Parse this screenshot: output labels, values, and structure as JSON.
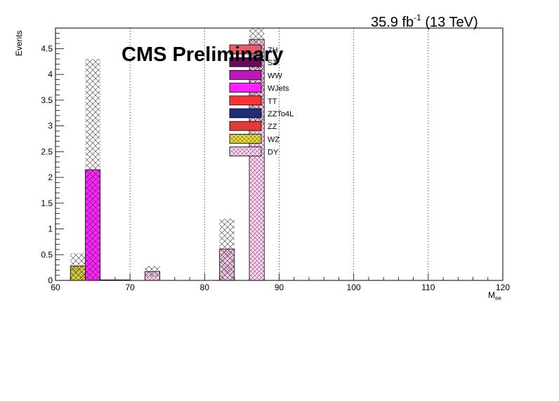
{
  "header": {
    "lumi_value": "35.9 fb",
    "lumi_exp": "-1",
    "lumi_energy": " (13 TeV)",
    "cms_label": "CMS Preliminary"
  },
  "axes": {
    "ylabel": "Events",
    "xlabel_main": "M",
    "xlabel_sub": "ee"
  },
  "chart_data": {
    "type": "bar",
    "stacked": true,
    "xlim": [
      60,
      120
    ],
    "ylim": [
      0,
      4.9
    ],
    "bin_width": 2,
    "x_ticks": [
      60,
      70,
      80,
      90,
      100,
      110,
      120
    ],
    "y_ticks": [
      0,
      0.5,
      1,
      1.5,
      2,
      2.5,
      3,
      3.5,
      4,
      4.5
    ],
    "y_tick_labels": [
      "0",
      "0.5",
      "1",
      "1.5",
      "2",
      "2.5",
      "3",
      "3.5",
      "4",
      "4.5"
    ],
    "grid_x": true,
    "grid_y": false,
    "legend_position": "top-center",
    "series": [
      {
        "name": "ZH",
        "color": "#ef5a6a",
        "pattern": "none",
        "bins": []
      },
      {
        "name": "ST",
        "color": "#6b0a5a",
        "pattern": "none",
        "bins": []
      },
      {
        "name": "WW",
        "color": "#c016c0",
        "pattern": "none",
        "bins": []
      },
      {
        "name": "WJets",
        "color": "#ff22ff",
        "pattern": "none",
        "bins": [
          {
            "lo": 64,
            "hi": 66,
            "value": 2.15
          }
        ]
      },
      {
        "name": "TT",
        "color": "#ff3333",
        "pattern": "none",
        "bins": []
      },
      {
        "name": "ZZTo4L",
        "color": "#1f2d7a",
        "pattern": "none",
        "bins": [
          {
            "lo": 66,
            "hi": 70,
            "value": 0.01
          }
        ]
      },
      {
        "name": "ZZ",
        "color": "#e03a3a",
        "pattern": "none",
        "bins": []
      },
      {
        "name": "WZ",
        "color": "#e5d737",
        "pattern": "hatch",
        "bins": [
          {
            "lo": 62,
            "hi": 64,
            "value": 0.28
          }
        ]
      },
      {
        "name": "DY",
        "color": "#ffd0f2",
        "pattern": "hatch",
        "bins": [
          {
            "lo": 72,
            "hi": 74,
            "value": 0.17
          },
          {
            "lo": 82,
            "hi": 84,
            "value": 0.61
          },
          {
            "lo": 86,
            "hi": 88,
            "value": 4.68
          }
        ]
      }
    ],
    "uncertainty_band": [
      {
        "lo": 62,
        "hi": 64,
        "down": 0.02,
        "up": 0.53
      },
      {
        "lo": 64,
        "hi": 66,
        "down": 0.0,
        "up": 4.3
      },
      {
        "lo": 66,
        "hi": 70,
        "down": 0.0,
        "up": 0.02
      },
      {
        "lo": 72,
        "hi": 74,
        "down": 0.07,
        "up": 0.28
      },
      {
        "lo": 82,
        "hi": 84,
        "down": 0.0,
        "up": 1.2
      },
      {
        "lo": 86,
        "hi": 88,
        "down": 3.0,
        "up": 4.9
      }
    ]
  }
}
